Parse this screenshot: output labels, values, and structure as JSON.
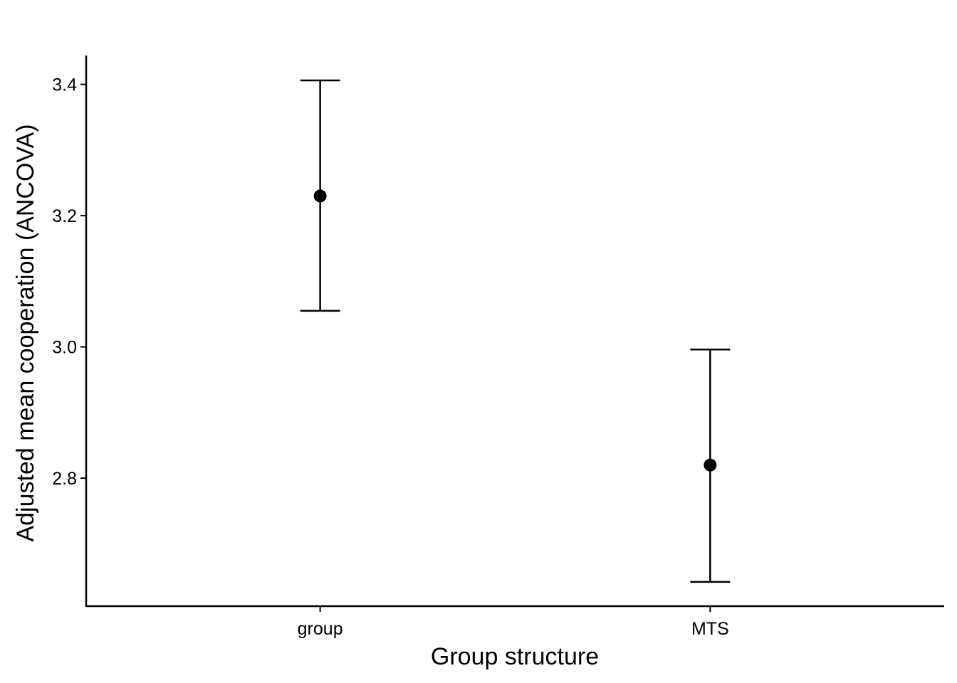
{
  "chart_data": {
    "type": "errorbar",
    "title": "",
    "xlabel": "Group structure",
    "ylabel": "Adjusted mean cooperation (ANCOVA)",
    "categories": [
      "group",
      "MTS"
    ],
    "series": [
      {
        "values": [
          3.23,
          2.82
        ],
        "lower": [
          3.055,
          2.642
        ],
        "upper": [
          3.406,
          2.996
        ]
      }
    ],
    "ylim": [
      2.605,
      3.444
    ],
    "yticks": [
      2.8,
      3.0,
      3.2,
      3.4
    ],
    "ytick_labels": [
      "2.8",
      "3.0",
      "3.2",
      "3.4"
    ],
    "grid": false,
    "legend": "none",
    "colors": {
      "marks": "#000000",
      "axis": "#000000",
      "background": "#ffffff"
    }
  }
}
